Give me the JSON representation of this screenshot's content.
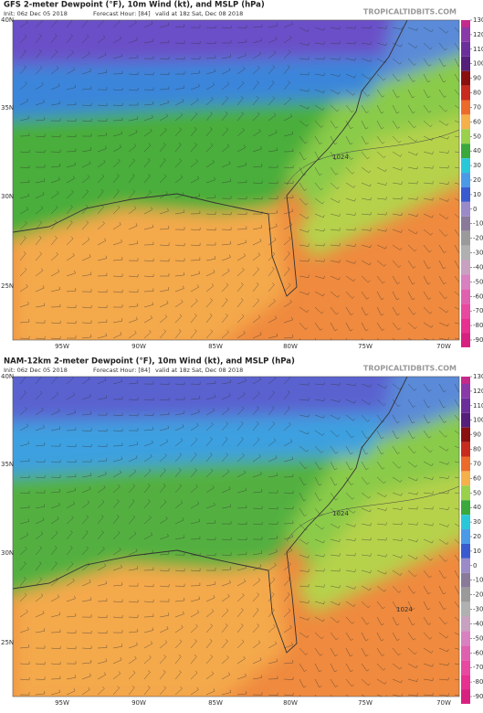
{
  "panels": [
    {
      "title": "GFS 2-meter Dewpoint (°F), 10m Wind (kt), and MSLP (hPa)",
      "init": "Init: 06z Dec 05 2018",
      "forecast": "Forecast Hour: [84]",
      "valid": "valid at 18z Sat, Dec 08 2018",
      "watermark": "TROPICALTIDBITS.COM",
      "lat_labels": [
        "40N",
        "35N",
        "30N",
        "25N"
      ],
      "lon_labels": [
        "95W",
        "90W",
        "85W",
        "80W",
        "75W",
        "70W"
      ],
      "isobar_labels": [
        "1024"
      ]
    },
    {
      "title": "NAM-12km 2-meter Dewpoint (°F), 10m Wind (kt), and MSLP (hPa)",
      "init": "Init: 06z Dec 05 2018",
      "forecast": "Forecast Hour: [84]",
      "valid": "valid at 18z Sat, Dec 08 2018",
      "watermark": "TROPICALTIDBITS.COM",
      "lat_labels": [
        "40N",
        "35N",
        "30N",
        "25N"
      ],
      "lon_labels": [
        "95W",
        "90W",
        "85W",
        "80W",
        "75W",
        "70W"
      ],
      "isobar_labels": [
        "1024",
        "1024"
      ]
    }
  ],
  "colorbar": {
    "ticks": [
      130,
      120,
      110,
      100,
      90,
      80,
      70,
      60,
      50,
      40,
      30,
      20,
      10,
      0,
      -10,
      -20,
      -30,
      -40,
      -50,
      -60,
      -70,
      -80,
      -90
    ],
    "colors": [
      "#c42a8c",
      "#8a3aa8",
      "#6b2f9c",
      "#55207a",
      "#8a1010",
      "#c82a1e",
      "#ec6a2a",
      "#f5b04a",
      "#9ad04a",
      "#3aa83a",
      "#28c8d8",
      "#4a9ae8",
      "#3a5ad0",
      "#9a8ac8",
      "#8a7a9a",
      "#9a9a9a",
      "#b0b0b0",
      "#c8a0c0",
      "#d880c0",
      "#e060b0",
      "#e848a0",
      "#e83090",
      "#d82080"
    ]
  }
}
